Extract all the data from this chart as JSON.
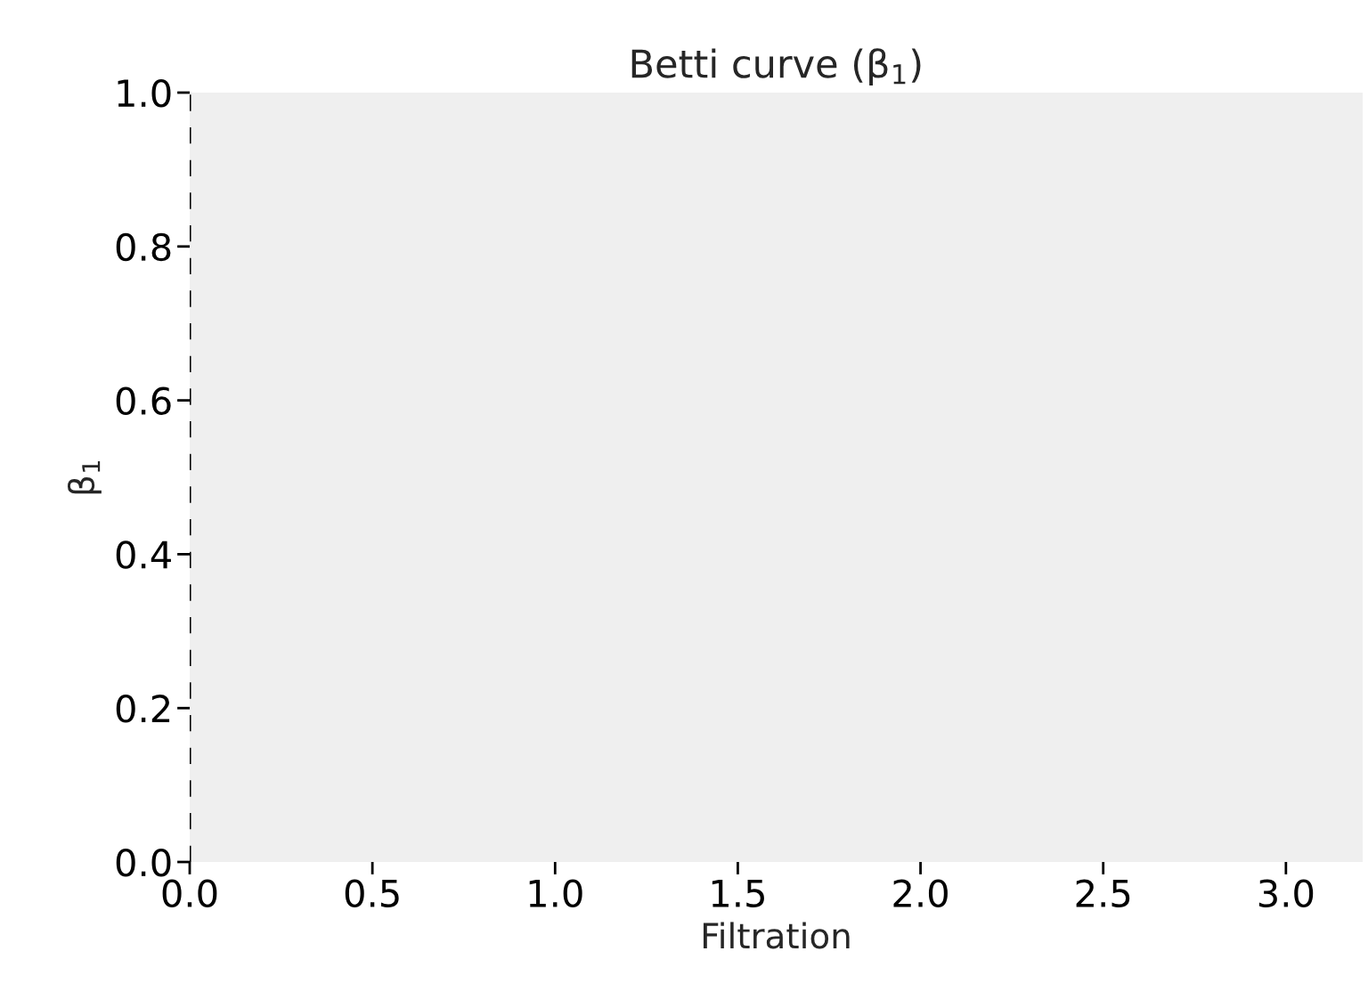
{
  "chart_data": {
    "type": "line",
    "title": "Betti curve (β$_{1}$)",
    "xlabel": "Filtration",
    "ylabel": "β$_{1}$",
    "xlim": [
      0,
      3.21
    ],
    "xticks": [
      {
        "value": 0,
        "label": "0.0"
      },
      0.5,
      {
        "value": 1,
        "label": "1.0"
      },
      1.5,
      {
        "value": 2,
        "label": "2.0"
      },
      2.5,
      {
        "value": 3,
        "label": "3.0"
      }
    ],
    "ylim": [
      0,
      1
    ],
    "yticks": [
      {
        "value": 0,
        "label": "0.0"
      },
      0.2,
      0.4,
      0.6,
      0.8,
      {
        "value": 1,
        "label": "1.0"
      }
    ],
    "ref_lines": [
      {
        "axis": "x",
        "value": 0,
        "color": "#000000",
        "line_style": "dashed"
      }
    ],
    "grid": false
  }
}
